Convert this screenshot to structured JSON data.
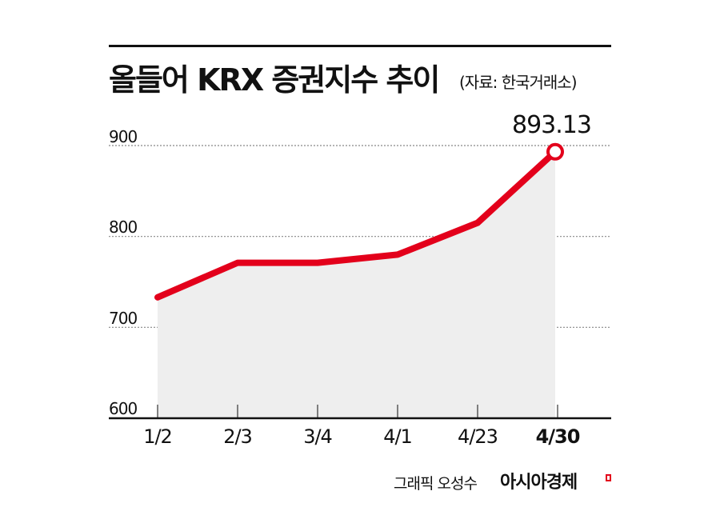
{
  "header": {
    "title": "올들어 KRX 증권지수 추이",
    "source": "(자료: 한국거래소)"
  },
  "colors": {
    "line": "#e3001b",
    "area": "#eeeeee",
    "grid": "#888888",
    "axis": "#111111"
  },
  "chart_data": {
    "type": "line",
    "title": "올들어 KRX 증권지수 추이",
    "subtitle": "(자료: 한국거래소)",
    "xlabel": "",
    "ylabel": "",
    "categories": [
      "1/2",
      "2/3",
      "3/4",
      "4/1",
      "4/23",
      "4/30"
    ],
    "series": [
      {
        "name": "KRX 증권지수",
        "values": [
          733,
          771,
          771,
          780,
          815,
          893.13
        ]
      }
    ],
    "ylim": [
      600,
      900
    ],
    "yticks": [
      "900",
      "800",
      "700",
      "600"
    ],
    "grid": true,
    "fill": "area",
    "annotations": [
      {
        "x": "4/30",
        "text": "893.13"
      }
    ]
  },
  "axis": {
    "y_labels": [
      "900",
      "800",
      "700",
      "600"
    ],
    "x_labels": [
      "1/2",
      "2/3",
      "3/4",
      "4/1",
      "4/23",
      "4/30"
    ]
  },
  "annotation": {
    "last_value": "893.13"
  },
  "footer": {
    "credit": "그래픽 오성수",
    "brand": "아시아경제"
  }
}
